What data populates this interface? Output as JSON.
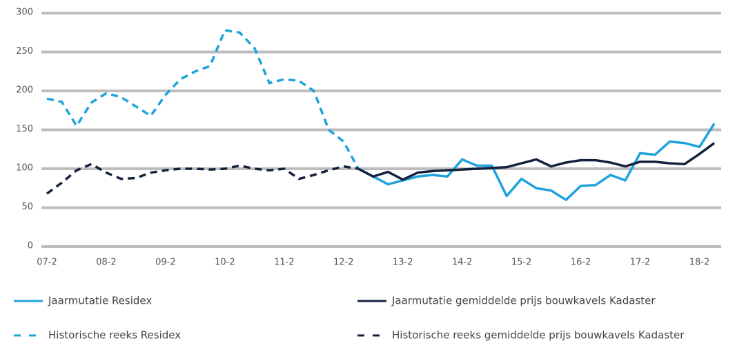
{
  "chart_data": {
    "type": "line",
    "categories": [
      "07-2",
      null,
      null,
      null,
      "08-2",
      null,
      null,
      null,
      "09-2",
      null,
      null,
      null,
      "10-2",
      null,
      null,
      null,
      "11-2",
      null,
      null,
      null,
      "12-2",
      null,
      null,
      null,
      "13-2",
      null,
      null,
      null,
      "14-2",
      null,
      null,
      null,
      "15-2",
      null,
      null,
      null,
      "16-2",
      null,
      null,
      null,
      "17-2",
      null,
      null,
      null,
      "18-2",
      null
    ],
    "ylim": [
      0,
      300
    ],
    "yticks": [
      0,
      50,
      100,
      150,
      200,
      250,
      300
    ],
    "grid": true,
    "series": [
      {
        "name": "Jaarmutatie Residex",
        "color": "#1ea3dc",
        "dashed": false,
        "values": [
          null,
          null,
          null,
          null,
          null,
          null,
          null,
          null,
          null,
          null,
          null,
          null,
          null,
          null,
          null,
          null,
          null,
          null,
          null,
          null,
          null,
          100,
          90,
          80,
          85,
          90,
          92,
          90,
          112,
          104,
          104,
          65,
          87,
          75,
          72,
          60,
          78,
          79,
          92,
          85,
          120,
          118,
          135,
          133,
          128,
          158
        ]
      },
      {
        "name": "Jaarmutatie gemiddelde prijs bouwkavels Kadaster",
        "color": "#14213d",
        "dashed": false,
        "values": [
          null,
          null,
          null,
          null,
          null,
          null,
          null,
          null,
          null,
          null,
          null,
          null,
          null,
          null,
          null,
          null,
          null,
          null,
          null,
          null,
          null,
          100,
          90,
          96,
          86,
          95,
          97,
          98,
          99,
          100,
          101,
          102,
          107,
          112,
          103,
          108,
          111,
          111,
          108,
          103,
          109,
          109,
          107,
          106,
          119,
          133
        ]
      },
      {
        "name": "Historische reeks Residex",
        "color": "#1ea3dc",
        "dashed": true,
        "values": [
          190,
          186,
          155,
          185,
          197,
          192,
          180,
          168,
          195,
          215,
          225,
          232,
          278,
          275,
          255,
          210,
          215,
          213,
          200,
          150,
          135,
          100,
          null,
          null,
          null,
          null,
          null,
          null,
          null,
          null,
          null,
          null,
          null,
          null,
          null,
          null,
          null,
          null,
          null,
          null,
          null,
          null,
          null,
          null,
          null,
          null
        ]
      },
      {
        "name": "Historische reeks gemiddelde prijs bouwkavels Kadaster",
        "color": "#14213d",
        "dashed": true,
        "values": [
          68,
          82,
          98,
          106,
          95,
          87,
          88,
          95,
          98,
          100,
          100,
          99,
          100,
          104,
          100,
          98,
          100,
          87,
          92,
          98,
          103,
          100,
          null,
          null,
          null,
          null,
          null,
          null,
          null,
          null,
          null,
          null,
          null,
          null,
          null,
          null,
          null,
          null,
          null,
          null,
          null,
          null,
          null,
          null,
          null,
          null
        ]
      }
    ]
  }
}
